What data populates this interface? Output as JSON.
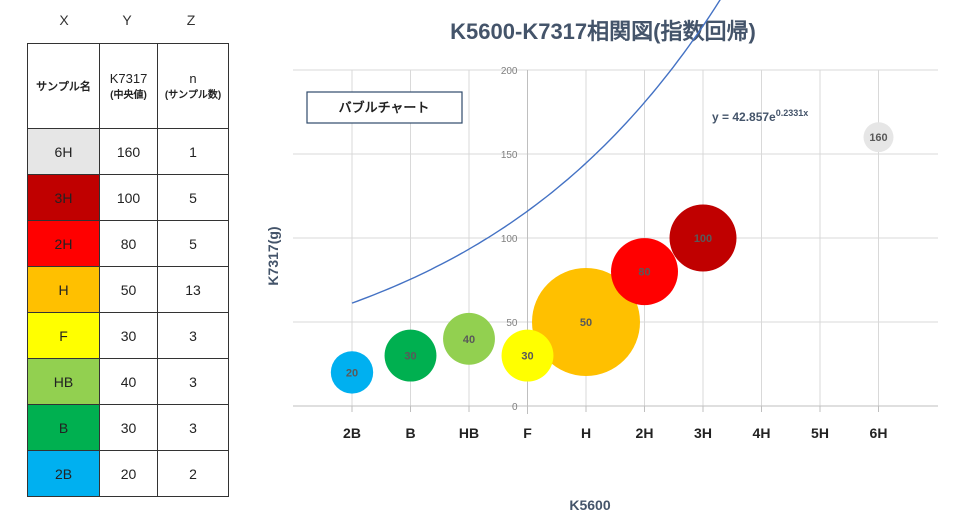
{
  "table": {
    "col_letters": [
      "X",
      "Y",
      "Z"
    ],
    "header": {
      "name": "サンプル名",
      "y_main": "K7317",
      "y_sub": "(中央値)",
      "z_main": "n",
      "z_sub": "(サンプル数)"
    },
    "rows": [
      {
        "name": "6H",
        "y": "160",
        "z": "1",
        "bg": "#e6e6e6"
      },
      {
        "name": "3H",
        "y": "100",
        "z": "5",
        "bg": "#c00000"
      },
      {
        "name": "2H",
        "y": "80",
        "z": "5",
        "bg": "#ff0000"
      },
      {
        "name": "H",
        "y": "50",
        "z": "13",
        "bg": "#ffc000"
      },
      {
        "name": "F",
        "y": "30",
        "z": "3",
        "bg": "#ffff00"
      },
      {
        "name": "HB",
        "y": "40",
        "z": "3",
        "bg": "#92d050"
      },
      {
        "name": "B",
        "y": "30",
        "z": "3",
        "bg": "#00b050"
      },
      {
        "name": "2B",
        "y": "20",
        "z": "2",
        "bg": "#00b0f0"
      }
    ]
  },
  "chart_data": {
    "type": "scatter",
    "subtype": "bubble",
    "title": "K5600-K7317相関図(指数回帰)",
    "legend_box_label": "バブルチャート",
    "xlabel": "K5600",
    "ylabel": "K7317(g)",
    "categories": [
      "2B",
      "B",
      "HB",
      "F",
      "H",
      "2H",
      "3H",
      "4H",
      "5H",
      "6H"
    ],
    "ylim": [
      0,
      200
    ],
    "yticks": [
      0,
      50,
      100,
      150,
      200
    ],
    "grid": true,
    "points": [
      {
        "x": "2B",
        "y": 20,
        "size": 2,
        "label": "20",
        "color": "#00b0f0"
      },
      {
        "x": "B",
        "y": 30,
        "size": 3,
        "label": "30",
        "color": "#00b050"
      },
      {
        "x": "HB",
        "y": 40,
        "size": 3,
        "label": "40",
        "color": "#92d050"
      },
      {
        "x": "F",
        "y": 30,
        "size": 3,
        "label": "30",
        "color": "#ffff00"
      },
      {
        "x": "H",
        "y": 50,
        "size": 13,
        "label": "50",
        "color": "#ffc000"
      },
      {
        "x": "2H",
        "y": 80,
        "size": 5,
        "label": "80",
        "color": "#ff0000"
      },
      {
        "x": "3H",
        "y": 100,
        "size": 5,
        "label": "100",
        "color": "#c00000"
      },
      {
        "x": "6H",
        "y": 160,
        "size": 1,
        "label": "160",
        "color": "#e6e6e6"
      }
    ],
    "trendline": {
      "type": "exponential",
      "a": 42.857,
      "b": 0.2331,
      "equation_base": "y = 42.857e",
      "equation_exp": "0.2331x",
      "color": "#4472c4"
    },
    "colors": {
      "title": "#44546a",
      "axis_text": "#7f7f7f",
      "grid": "#d9d9d9",
      "bubble_label": "#595959"
    }
  }
}
